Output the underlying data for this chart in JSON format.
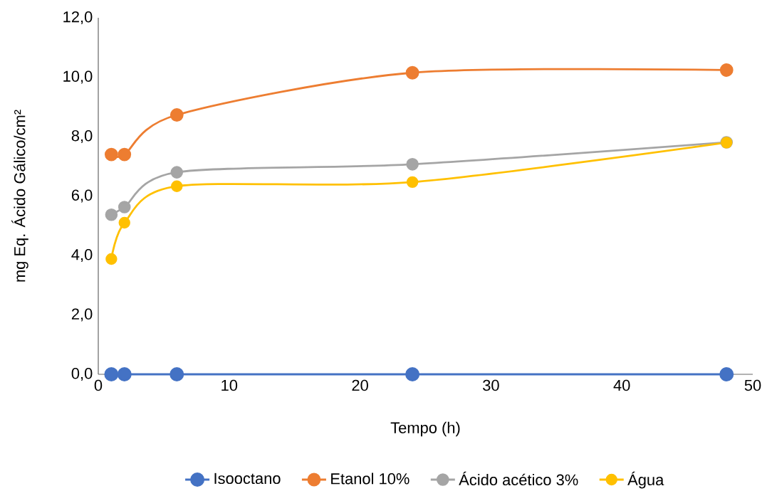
{
  "chart_data": {
    "type": "line",
    "xlabel": "Tempo (h)",
    "ylabel": "mg Eq. Ácido Gálico/cm²",
    "x": [
      1,
      2,
      6,
      24,
      48
    ],
    "series": [
      {
        "name": "Isooctano",
        "color": "#4472c4",
        "values": [
          0,
          0,
          0,
          0,
          0
        ]
      },
      {
        "name": "Etanol 10%",
        "color": "#ed7d31",
        "values": [
          7.4,
          7.4,
          8.73,
          10.15,
          10.24
        ]
      },
      {
        "name": "Ácido acético 3%",
        "color": "#a5a5a5",
        "values": [
          5.37,
          5.63,
          6.8,
          7.07,
          7.81
        ]
      },
      {
        "name": "Água",
        "color": "#ffc000",
        "values": [
          3.88,
          5.1,
          6.33,
          6.47,
          7.8
        ]
      }
    ],
    "xlim": [
      0,
      50
    ],
    "ylim": [
      0,
      12
    ],
    "xticks": [
      0,
      10,
      20,
      30,
      40,
      50
    ],
    "yticks": [
      {
        "value": 0,
        "label": "0,0"
      },
      {
        "value": 2,
        "label": "2,0"
      },
      {
        "value": 4,
        "label": "4,0"
      },
      {
        "value": 6,
        "label": "6,0"
      },
      {
        "value": 8,
        "label": "8,0"
      },
      {
        "value": 10,
        "label": "10,0"
      },
      {
        "value": 12,
        "label": "12,0"
      }
    ],
    "legend": "bottom",
    "marker": "circle",
    "line_style": "solid"
  }
}
